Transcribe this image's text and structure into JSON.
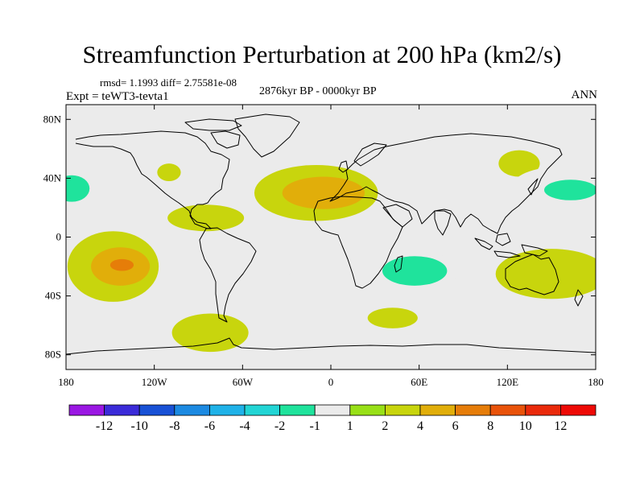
{
  "title": "Streamfunction Perturbation at 200 hPa (km2/s)",
  "stats_line": "rmsd= 1.1993 diff= 2.75581e-08",
  "period": "2876kyr BP - 0000kyr BP",
  "experiment": "Expt = teWT3-tevta1",
  "season": "ANN",
  "map": {
    "lon_range": [
      -180,
      180
    ],
    "lat_range": [
      -90,
      90
    ],
    "lat_ticks": [
      {
        "value": 80,
        "label": "80N"
      },
      {
        "value": 40,
        "label": "40N"
      },
      {
        "value": 0,
        "label": "0"
      },
      {
        "value": -40,
        "label": "40S"
      },
      {
        "value": -80,
        "label": "80S"
      }
    ],
    "lon_ticks": [
      {
        "value": -180,
        "label": "180"
      },
      {
        "value": -120,
        "label": "120W"
      },
      {
        "value": -60,
        "label": "60W"
      },
      {
        "value": 0,
        "label": "0"
      },
      {
        "value": 60,
        "label": "60E"
      },
      {
        "value": 120,
        "label": "120E"
      },
      {
        "value": 180,
        "label": "180"
      }
    ],
    "background_color": "#ebebeb",
    "coast_color": "#000000"
  },
  "anomalies": [
    {
      "id": "north-pacific-east-negative",
      "lon": -176,
      "lat": 33,
      "rx": 12,
      "ry": 9,
      "level": -2
    },
    {
      "id": "north-atlantic-positive",
      "lon": -10,
      "lat": 30,
      "rx": 42,
      "ry": 19,
      "level": 2
    },
    {
      "id": "north-atlantic-core",
      "lon": -5,
      "lat": 30,
      "rx": 28,
      "ry": 11,
      "level": 4
    },
    {
      "id": "north-america-negative",
      "lon": -78,
      "lat": 51,
      "rx": 13,
      "ry": 14,
      "level": -1
    },
    {
      "id": "gulf-positive",
      "lon": -110,
      "lat": 44,
      "rx": 8,
      "ry": 6,
      "level": 2
    },
    {
      "id": "tropical-atlantic-positive",
      "lon": -85,
      "lat": 13,
      "rx": 26,
      "ry": 9,
      "level": 2
    },
    {
      "id": "central-asia-negative",
      "lon": 70,
      "lat": 52,
      "rx": 7,
      "ry": 4,
      "level": -1
    },
    {
      "id": "northeast-asia-positive",
      "lon": 128,
      "lat": 50,
      "rx": 14,
      "ry": 9,
      "level": 2
    },
    {
      "id": "west-pacific-negative",
      "lon": 157,
      "lat": 33,
      "rx": 35,
      "ry": 15,
      "level": -1
    },
    {
      "id": "west-pacific-core",
      "lon": 163,
      "lat": 32,
      "rx": 18,
      "ry": 7,
      "level": -2
    },
    {
      "id": "south-pacific-positive",
      "lon": -148,
      "lat": -20,
      "rx": 31,
      "ry": 24,
      "level": 2
    },
    {
      "id": "south-pacific-mid",
      "lon": -143,
      "lat": -20,
      "rx": 20,
      "ry": 13,
      "level": 4
    },
    {
      "id": "south-pacific-core",
      "lon": -142,
      "lat": -19,
      "rx": 8,
      "ry": 4,
      "level": 6
    },
    {
      "id": "south-america-negative",
      "lon": -85,
      "lat": -11,
      "rx": 14,
      "ry": 12,
      "level": -1
    },
    {
      "id": "south-atlantic-negative",
      "lon": -28,
      "lat": -25,
      "rx": 18,
      "ry": 14,
      "level": -1
    },
    {
      "id": "south-atlantic-trough",
      "lon": -22,
      "lat": -50,
      "rx": 13,
      "ry": 28,
      "level": -1
    },
    {
      "id": "indian-ocean-negative",
      "lon": 45,
      "lat": -23,
      "rx": 42,
      "ry": 15,
      "level": -1
    },
    {
      "id": "indian-ocean-core",
      "lon": 57,
      "lat": -23,
      "rx": 22,
      "ry": 10,
      "level": -2
    },
    {
      "id": "southern-ocean-positive",
      "lon": 42,
      "lat": -55,
      "rx": 17,
      "ry": 7,
      "level": 2
    },
    {
      "id": "drake-passage-positive",
      "lon": -82,
      "lat": -65,
      "rx": 26,
      "ry": 13,
      "level": 2
    },
    {
      "id": "australia-positive",
      "lon": 150,
      "lat": -25,
      "rx": 38,
      "ry": 17,
      "level": 2
    },
    {
      "id": "south-indian-ocean-dot",
      "lon": 40,
      "lat": -50,
      "rx": 0.5,
      "ry": 0.5,
      "level": 2
    }
  ],
  "colorbar": {
    "labels": [
      "-12",
      "-10",
      "-8",
      "-6",
      "-4",
      "-2",
      "-1",
      "1",
      "2",
      "4",
      "6",
      "8",
      "10",
      "12"
    ],
    "colors": [
      "#9a17e3",
      "#3b2bd9",
      "#1851d6",
      "#1c8ae2",
      "#1fb2e8",
      "#22d5d5",
      "#1fe39c",
      "#ebebeb",
      "#98e017",
      "#c8d50d",
      "#e1ae0a",
      "#e67d09",
      "#e9530a",
      "#ea2a0b",
      "#ee0a06"
    ]
  }
}
